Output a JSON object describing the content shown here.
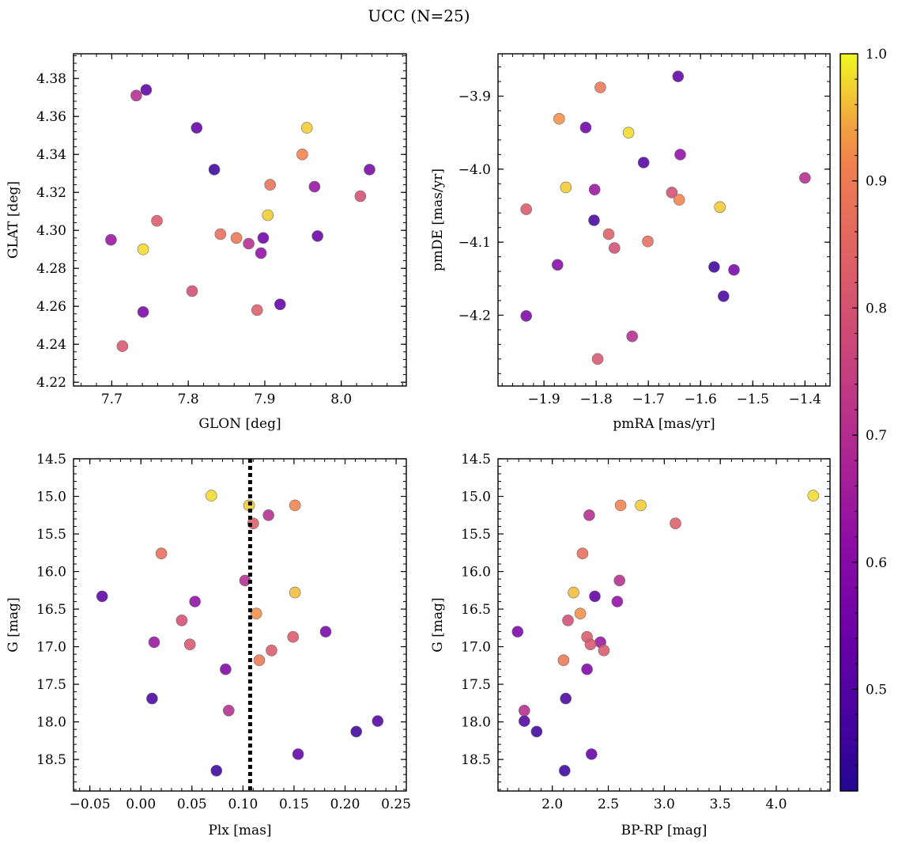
{
  "figure": {
    "title": "UCC (N=25)"
  },
  "colorbar": {
    "colormap": "plasma",
    "min": 0.42,
    "max": 1.0,
    "ticks": [
      0.5,
      0.6,
      0.7,
      0.8,
      0.9,
      1.0
    ],
    "tick_labels": [
      "0.5",
      "0.6",
      "0.7",
      "0.8",
      "0.9",
      "1.0"
    ]
  },
  "chart_data": [
    {
      "type": "scatter",
      "xlabel": "GLON [deg]",
      "ylabel": "GLAT [deg]",
      "xlim": [
        7.65,
        8.085
      ],
      "ylim": [
        4.218,
        4.393
      ],
      "xticks": [
        7.7,
        7.8,
        7.9,
        8.0
      ],
      "xtick_labels": [
        "7.7",
        "7.8",
        "7.9",
        "8.0"
      ],
      "yticks": [
        4.22,
        4.24,
        4.26,
        4.28,
        4.3,
        4.32,
        4.34,
        4.36,
        4.38
      ],
      "ytick_labels": [
        "4.22",
        "4.24",
        "4.26",
        "4.28",
        "4.30",
        "4.32",
        "4.34",
        "4.36",
        "4.38"
      ],
      "points": [
        {
          "x": 7.745,
          "y": 4.374,
          "c": 0.52
        },
        {
          "x": 7.732,
          "y": 4.371,
          "c": 0.7
        },
        {
          "x": 7.811,
          "y": 4.354,
          "c": 0.53
        },
        {
          "x": 7.955,
          "y": 4.354,
          "c": 0.97
        },
        {
          "x": 7.949,
          "y": 4.34,
          "c": 0.92
        },
        {
          "x": 7.834,
          "y": 4.332,
          "c": 0.46
        },
        {
          "x": 8.037,
          "y": 4.332,
          "c": 0.57
        },
        {
          "x": 7.907,
          "y": 4.324,
          "c": 0.88
        },
        {
          "x": 7.965,
          "y": 4.323,
          "c": 0.63
        },
        {
          "x": 8.025,
          "y": 4.318,
          "c": 0.79
        },
        {
          "x": 7.904,
          "y": 4.308,
          "c": 0.97
        },
        {
          "x": 7.759,
          "y": 4.305,
          "c": 0.82
        },
        {
          "x": 7.842,
          "y": 4.298,
          "c": 0.87
        },
        {
          "x": 7.863,
          "y": 4.296,
          "c": 0.89
        },
        {
          "x": 7.898,
          "y": 4.296,
          "c": 0.55
        },
        {
          "x": 7.969,
          "y": 4.297,
          "c": 0.54
        },
        {
          "x": 7.699,
          "y": 4.295,
          "c": 0.64
        },
        {
          "x": 7.879,
          "y": 4.293,
          "c": 0.7
        },
        {
          "x": 7.741,
          "y": 4.29,
          "c": 0.98
        },
        {
          "x": 7.895,
          "y": 4.288,
          "c": 0.62
        },
        {
          "x": 7.805,
          "y": 4.268,
          "c": 0.79
        },
        {
          "x": 7.92,
          "y": 4.261,
          "c": 0.53
        },
        {
          "x": 7.89,
          "y": 4.258,
          "c": 0.83
        },
        {
          "x": 7.741,
          "y": 4.257,
          "c": 0.58
        },
        {
          "x": 7.714,
          "y": 4.239,
          "c": 0.81
        }
      ]
    },
    {
      "type": "scatter",
      "xlabel": "pmRA [mas/yr]",
      "ylabel": "pmDE [mas/yr]",
      "xlim": [
        -1.988,
        -1.352
      ],
      "ylim": [
        -4.297,
        -3.842
      ],
      "xticks": [
        -1.9,
        -1.8,
        -1.7,
        -1.6,
        -1.5,
        -1.4
      ],
      "xtick_labels": [
        "−1.9",
        "−1.8",
        "−1.7",
        "−1.6",
        "−1.5",
        "−1.4"
      ],
      "yticks": [
        -3.9,
        -4.0,
        -4.1,
        -4.2
      ],
      "ytick_labels": [
        "−3.9",
        "−4.0",
        "−4.1",
        "−4.2"
      ],
      "points": [
        {
          "x": -1.643,
          "y": -3.873,
          "c": 0.52
        },
        {
          "x": -1.792,
          "y": -3.888,
          "c": 0.89
        },
        {
          "x": -1.871,
          "y": -3.931,
          "c": 0.93
        },
        {
          "x": -1.82,
          "y": -3.943,
          "c": 0.55
        },
        {
          "x": -1.738,
          "y": -3.95,
          "c": 0.98
        },
        {
          "x": -1.639,
          "y": -3.98,
          "c": 0.62
        },
        {
          "x": -1.709,
          "y": -3.991,
          "c": 0.5
        },
        {
          "x": -1.4,
          "y": -4.012,
          "c": 0.7
        },
        {
          "x": -1.858,
          "y": -4.025,
          "c": 0.97
        },
        {
          "x": -1.803,
          "y": -4.028,
          "c": 0.64
        },
        {
          "x": -1.655,
          "y": -4.032,
          "c": 0.79
        },
        {
          "x": -1.641,
          "y": -4.042,
          "c": 0.92
        },
        {
          "x": -1.563,
          "y": -4.052,
          "c": 0.97
        },
        {
          "x": -1.934,
          "y": -4.055,
          "c": 0.82
        },
        {
          "x": -1.804,
          "y": -4.07,
          "c": 0.48
        },
        {
          "x": -1.776,
          "y": -4.089,
          "c": 0.83
        },
        {
          "x": -1.701,
          "y": -4.099,
          "c": 0.87
        },
        {
          "x": -1.765,
          "y": -4.108,
          "c": 0.79
        },
        {
          "x": -1.874,
          "y": -4.131,
          "c": 0.6
        },
        {
          "x": -1.574,
          "y": -4.134,
          "c": 0.46
        },
        {
          "x": -1.536,
          "y": -4.138,
          "c": 0.57
        },
        {
          "x": -1.556,
          "y": -4.174,
          "c": 0.48
        },
        {
          "x": -1.934,
          "y": -4.201,
          "c": 0.58
        },
        {
          "x": -1.731,
          "y": -4.229,
          "c": 0.7
        },
        {
          "x": -1.797,
          "y": -4.26,
          "c": 0.81
        }
      ]
    },
    {
      "type": "scatter",
      "xlabel": "Plx [mas]",
      "ylabel": "G [mag]",
      "xlim": [
        -0.066,
        0.26
      ],
      "ylim": [
        18.92,
        14.5
      ],
      "y_inverted": true,
      "vline": 0.107,
      "xticks": [
        -0.05,
        0.0,
        0.05,
        0.1,
        0.15,
        0.2,
        0.25
      ],
      "xtick_labels": [
        "−0.05",
        "0.00",
        "0.05",
        "0.10",
        "0.15",
        "0.20",
        "0.25"
      ],
      "yticks": [
        14.5,
        15.0,
        15.5,
        16.0,
        16.5,
        17.0,
        17.5,
        18.0,
        18.5
      ],
      "ytick_labels": [
        "14.5",
        "15.0",
        "15.5",
        "16.0",
        "16.5",
        "17.0",
        "17.5",
        "18.0",
        "18.5"
      ],
      "points": [
        {
          "x": 0.069,
          "y": 14.99,
          "c": 0.98
        },
        {
          "x": 0.106,
          "y": 15.12,
          "c": 0.97
        },
        {
          "x": 0.151,
          "y": 15.12,
          "c": 0.92
        },
        {
          "x": 0.125,
          "y": 15.25,
          "c": 0.7
        },
        {
          "x": 0.11,
          "y": 15.36,
          "c": 0.83
        },
        {
          "x": 0.02,
          "y": 15.76,
          "c": 0.87
        },
        {
          "x": 0.102,
          "y": 16.12,
          "c": 0.7
        },
        {
          "x": 0.151,
          "y": 16.28,
          "c": 0.96
        },
        {
          "x": -0.038,
          "y": 16.33,
          "c": 0.52
        },
        {
          "x": 0.053,
          "y": 16.4,
          "c": 0.62
        },
        {
          "x": 0.113,
          "y": 16.56,
          "c": 0.93
        },
        {
          "x": 0.04,
          "y": 16.65,
          "c": 0.79
        },
        {
          "x": 0.181,
          "y": 16.8,
          "c": 0.57
        },
        {
          "x": 0.149,
          "y": 16.87,
          "c": 0.82
        },
        {
          "x": 0.013,
          "y": 16.94,
          "c": 0.64
        },
        {
          "x": 0.048,
          "y": 16.97,
          "c": 0.81
        },
        {
          "x": 0.128,
          "y": 17.05,
          "c": 0.82
        },
        {
          "x": 0.116,
          "y": 17.18,
          "c": 0.89
        },
        {
          "x": 0.083,
          "y": 17.3,
          "c": 0.58
        },
        {
          "x": 0.011,
          "y": 17.69,
          "c": 0.48
        },
        {
          "x": 0.086,
          "y": 17.85,
          "c": 0.7
        },
        {
          "x": 0.232,
          "y": 17.99,
          "c": 0.5
        },
        {
          "x": 0.211,
          "y": 18.13,
          "c": 0.46
        },
        {
          "x": 0.154,
          "y": 18.43,
          "c": 0.53
        },
        {
          "x": 0.074,
          "y": 18.65,
          "c": 0.46
        }
      ]
    },
    {
      "type": "scatter",
      "xlabel": "BP-RP [mag]",
      "ylabel": "G [mag]",
      "xlim": [
        1.515,
        4.48
      ],
      "ylim": [
        18.92,
        14.5
      ],
      "y_inverted": true,
      "xticks": [
        2.0,
        2.5,
        3.0,
        3.5,
        4.0
      ],
      "xtick_labels": [
        "2.0",
        "2.5",
        "3.0",
        "3.5",
        "4.0"
      ],
      "yticks": [
        14.5,
        15.0,
        15.5,
        16.0,
        16.5,
        17.0,
        17.5,
        18.0,
        18.5
      ],
      "ytick_labels": [
        "14.5",
        "15.0",
        "15.5",
        "16.0",
        "16.5",
        "17.0",
        "17.5",
        "18.0",
        "18.5"
      ],
      "points": [
        {
          "x": 4.33,
          "y": 14.99,
          "c": 0.98
        },
        {
          "x": 2.61,
          "y": 15.12,
          "c": 0.92
        },
        {
          "x": 2.79,
          "y": 15.12,
          "c": 0.97
        },
        {
          "x": 2.33,
          "y": 15.25,
          "c": 0.7
        },
        {
          "x": 3.1,
          "y": 15.36,
          "c": 0.83
        },
        {
          "x": 2.27,
          "y": 15.76,
          "c": 0.87
        },
        {
          "x": 2.6,
          "y": 16.12,
          "c": 0.7
        },
        {
          "x": 2.19,
          "y": 16.28,
          "c": 0.96
        },
        {
          "x": 2.38,
          "y": 16.33,
          "c": 0.52
        },
        {
          "x": 2.58,
          "y": 16.4,
          "c": 0.62
        },
        {
          "x": 2.25,
          "y": 16.56,
          "c": 0.93
        },
        {
          "x": 2.14,
          "y": 16.65,
          "c": 0.79
        },
        {
          "x": 1.69,
          "y": 16.8,
          "c": 0.57
        },
        {
          "x": 2.31,
          "y": 16.87,
          "c": 0.82
        },
        {
          "x": 2.43,
          "y": 16.94,
          "c": 0.64
        },
        {
          "x": 2.34,
          "y": 16.97,
          "c": 0.81
        },
        {
          "x": 2.46,
          "y": 17.05,
          "c": 0.82
        },
        {
          "x": 2.1,
          "y": 17.18,
          "c": 0.89
        },
        {
          "x": 2.31,
          "y": 17.3,
          "c": 0.58
        },
        {
          "x": 2.12,
          "y": 17.69,
          "c": 0.48
        },
        {
          "x": 1.75,
          "y": 17.85,
          "c": 0.7
        },
        {
          "x": 1.75,
          "y": 17.99,
          "c": 0.5
        },
        {
          "x": 1.86,
          "y": 18.13,
          "c": 0.46
        },
        {
          "x": 2.35,
          "y": 18.43,
          "c": 0.53
        },
        {
          "x": 2.11,
          "y": 18.65,
          "c": 0.46
        }
      ]
    }
  ]
}
